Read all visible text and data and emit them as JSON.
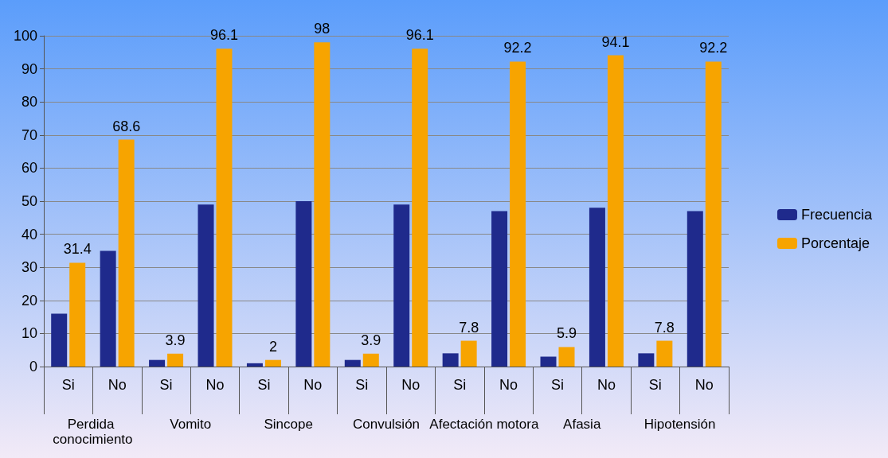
{
  "chart_data": {
    "type": "bar",
    "categories": [
      "Si",
      "No",
      "Si",
      "No",
      "Si",
      "No",
      "Si",
      "No",
      "Si",
      "No",
      "Si",
      "No",
      "Si",
      "No"
    ],
    "series": [
      {
        "name": "Frecuencia",
        "color": "#1f2a8c",
        "values": [
          16,
          35,
          2,
          49,
          1,
          50,
          2,
          49,
          4,
          47,
          3,
          48,
          4,
          47
        ]
      },
      {
        "name": "Porcentaje",
        "color": "#f7a400",
        "values": [
          31.4,
          68.6,
          3.9,
          96.1,
          2,
          98,
          3.9,
          96.1,
          7.8,
          92.2,
          5.9,
          94.1,
          7.8,
          92.2
        ],
        "value_labels": [
          "31.4",
          "68.6",
          "3.9",
          "96.1",
          "2",
          "98",
          "3.9",
          "96.1",
          "7.8",
          "92.2",
          "5.9",
          "94.1",
          "7.8",
          "92.2"
        ]
      }
    ],
    "annotations": [
      "Perdida conocimiento",
      "Vomito",
      "Sincope",
      "Convulsión",
      "Afectación motora",
      "Afasia",
      "Hipotensión"
    ],
    "ylim": [
      0,
      100
    ],
    "yticks": [
      0,
      10,
      20,
      30,
      40,
      50,
      60,
      70,
      80,
      90,
      100
    ],
    "grid": "y",
    "legend": "right"
  }
}
